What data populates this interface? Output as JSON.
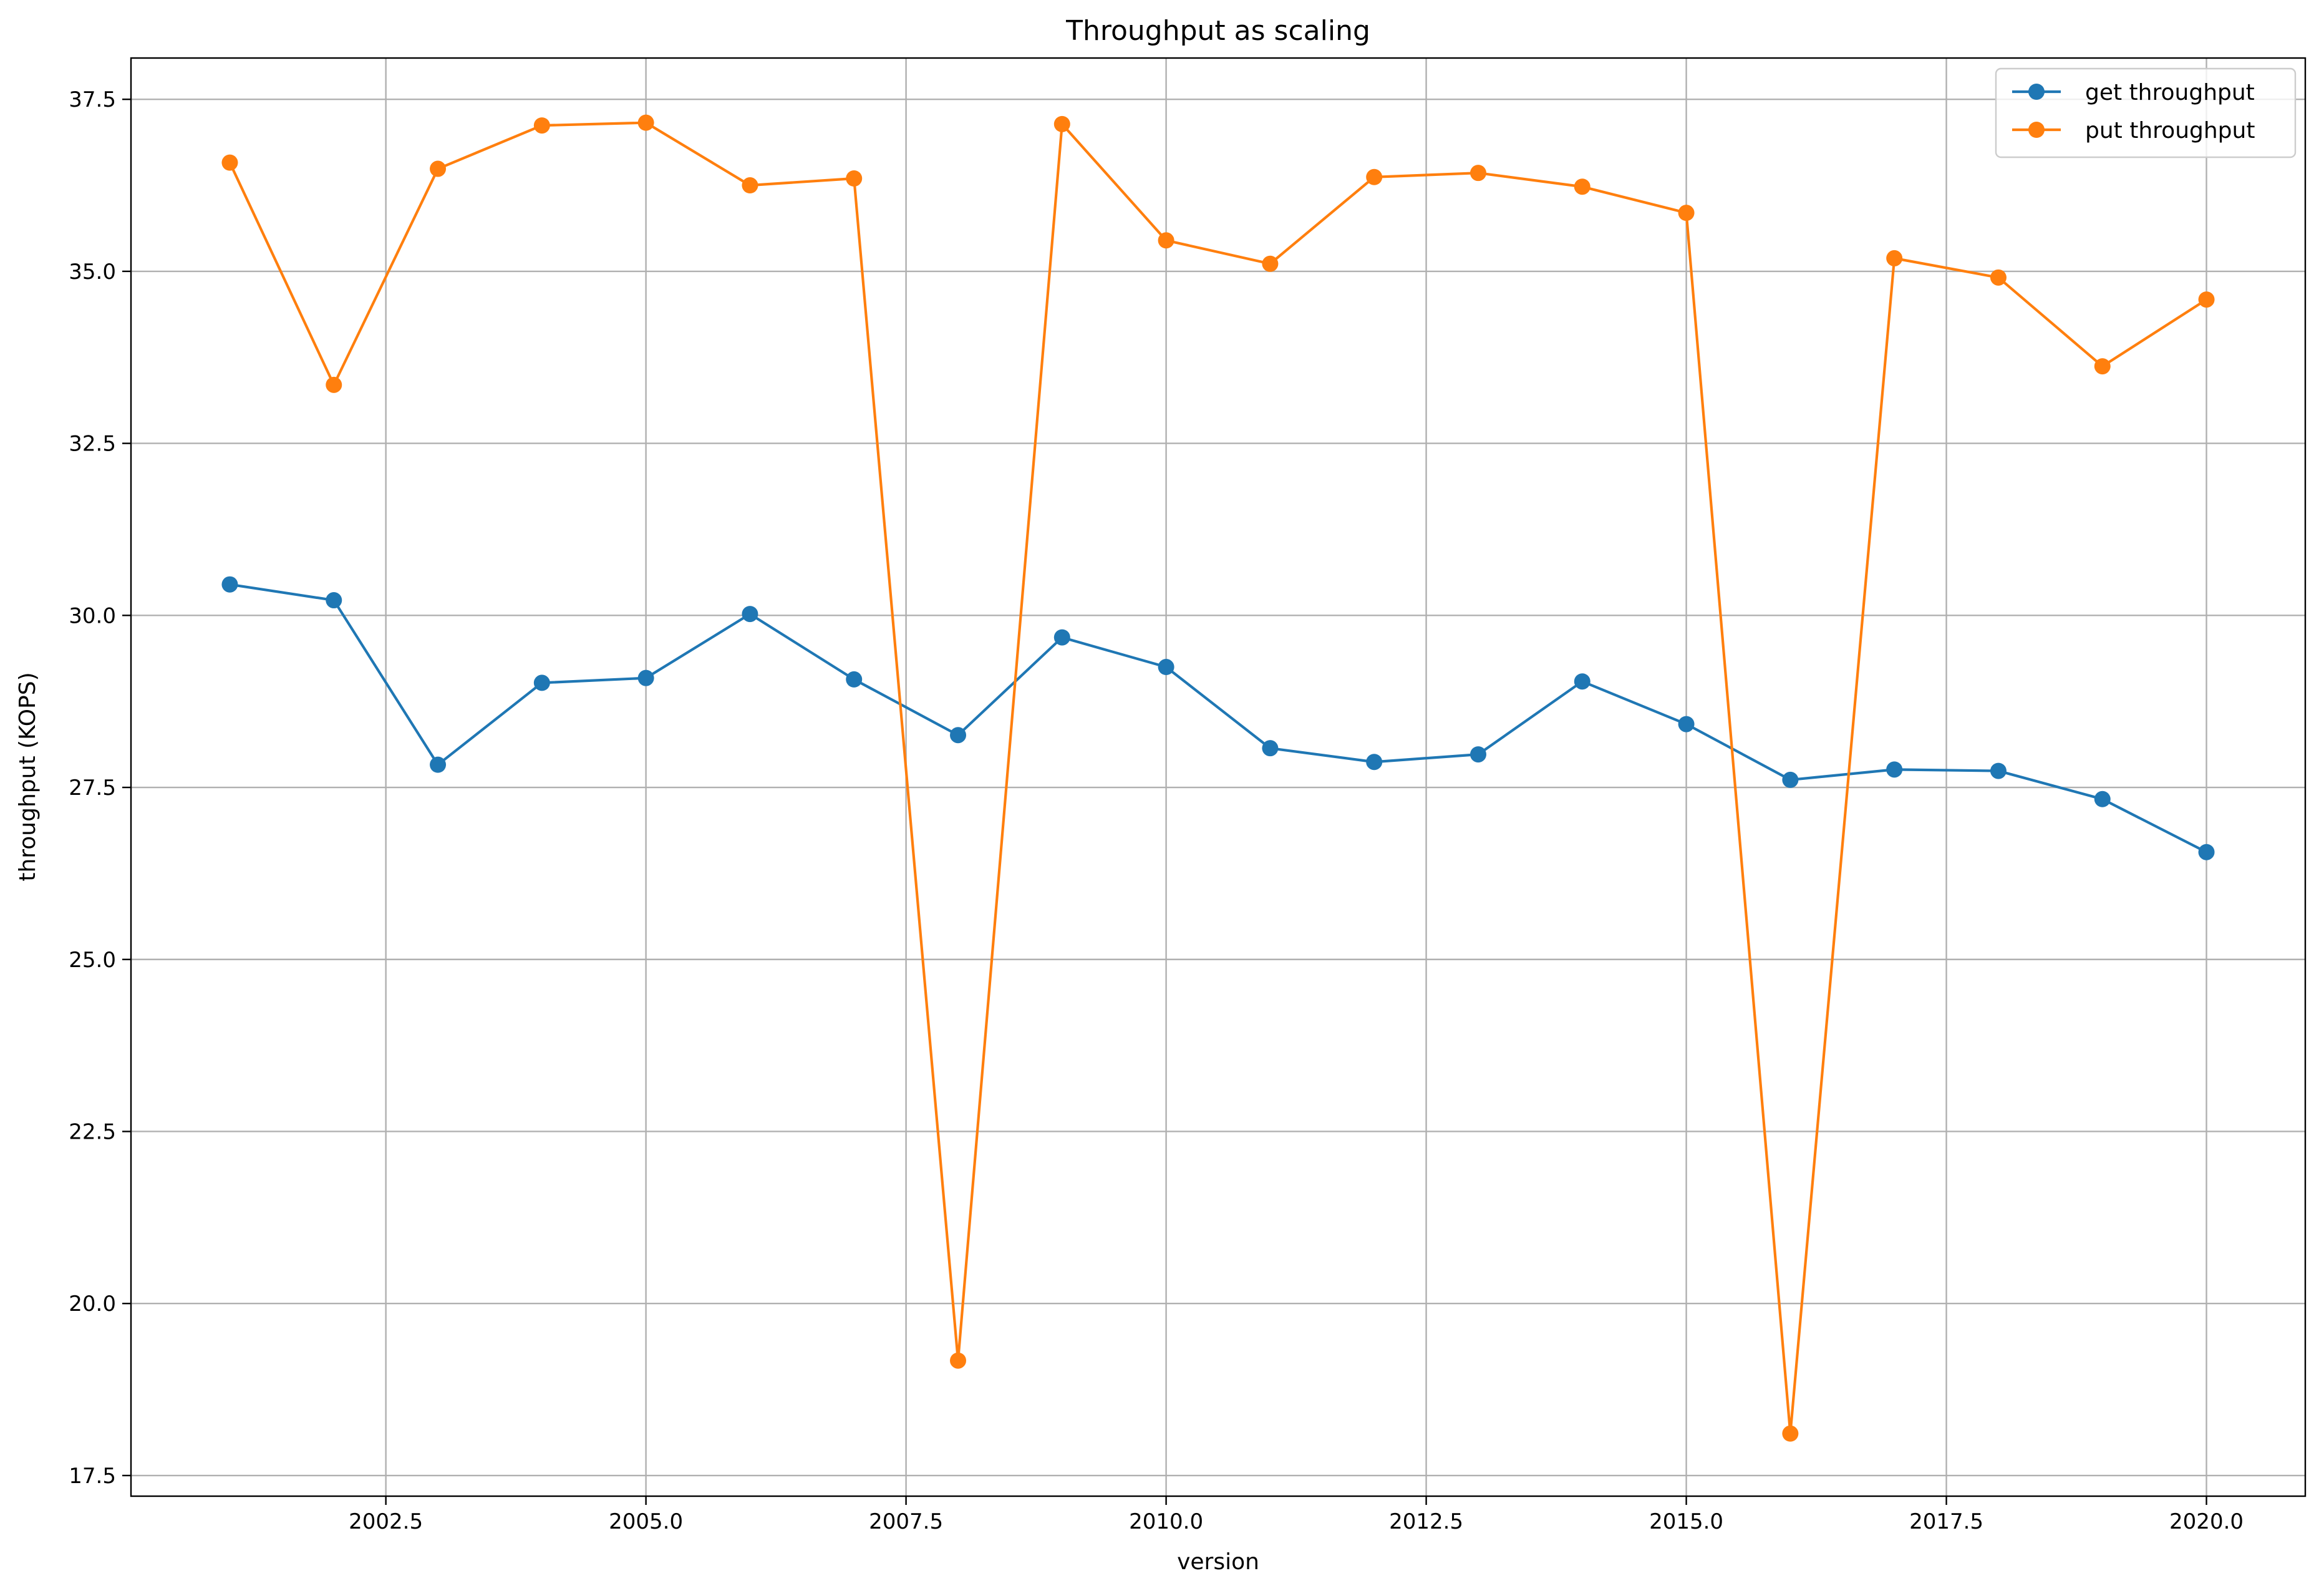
{
  "chart_data": {
    "type": "line",
    "title": "Throughput as scaling",
    "xlabel": "version",
    "ylabel": "throughput (KOPS)",
    "xlim": [
      2000.05,
      2020.95
    ],
    "ylim": [
      17.2,
      38.1
    ],
    "xticks": [
      2002.5,
      2005.0,
      2007.5,
      2010.0,
      2012.5,
      2015.0,
      2017.5,
      2020.0
    ],
    "xtick_labels": [
      "2002.5",
      "2005.0",
      "2007.5",
      "2010.0",
      "2012.5",
      "2015.0",
      "2017.5",
      "2020.0"
    ],
    "yticks": [
      17.5,
      20.0,
      22.5,
      25.0,
      27.5,
      30.0,
      32.5,
      35.0,
      37.5
    ],
    "ytick_labels": [
      "17.5",
      "20.0",
      "22.5",
      "25.0",
      "27.5",
      "30.0",
      "32.5",
      "35.0",
      "37.5"
    ],
    "grid": true,
    "legend_position": "top-right",
    "x": [
      2001,
      2002,
      2003,
      2004,
      2005,
      2006,
      2007,
      2008,
      2009,
      2010,
      2011,
      2012,
      2013,
      2014,
      2015,
      2016,
      2017,
      2018,
      2019,
      2020
    ],
    "series": [
      {
        "name": "get throughput",
        "color": "#1f77b4",
        "values": [
          30.45,
          30.22,
          27.83,
          29.02,
          29.09,
          30.02,
          29.07,
          28.26,
          29.68,
          29.25,
          28.07,
          27.87,
          27.98,
          29.04,
          28.42,
          27.61,
          27.76,
          27.74,
          27.33,
          26.56
        ]
      },
      {
        "name": "put throughput",
        "color": "#ff7f0e",
        "values": [
          36.58,
          33.35,
          36.49,
          37.12,
          37.16,
          36.25,
          36.35,
          19.17,
          37.14,
          35.45,
          35.11,
          36.37,
          36.43,
          36.23,
          35.85,
          18.11,
          35.19,
          34.91,
          33.62,
          34.59
        ]
      }
    ]
  }
}
